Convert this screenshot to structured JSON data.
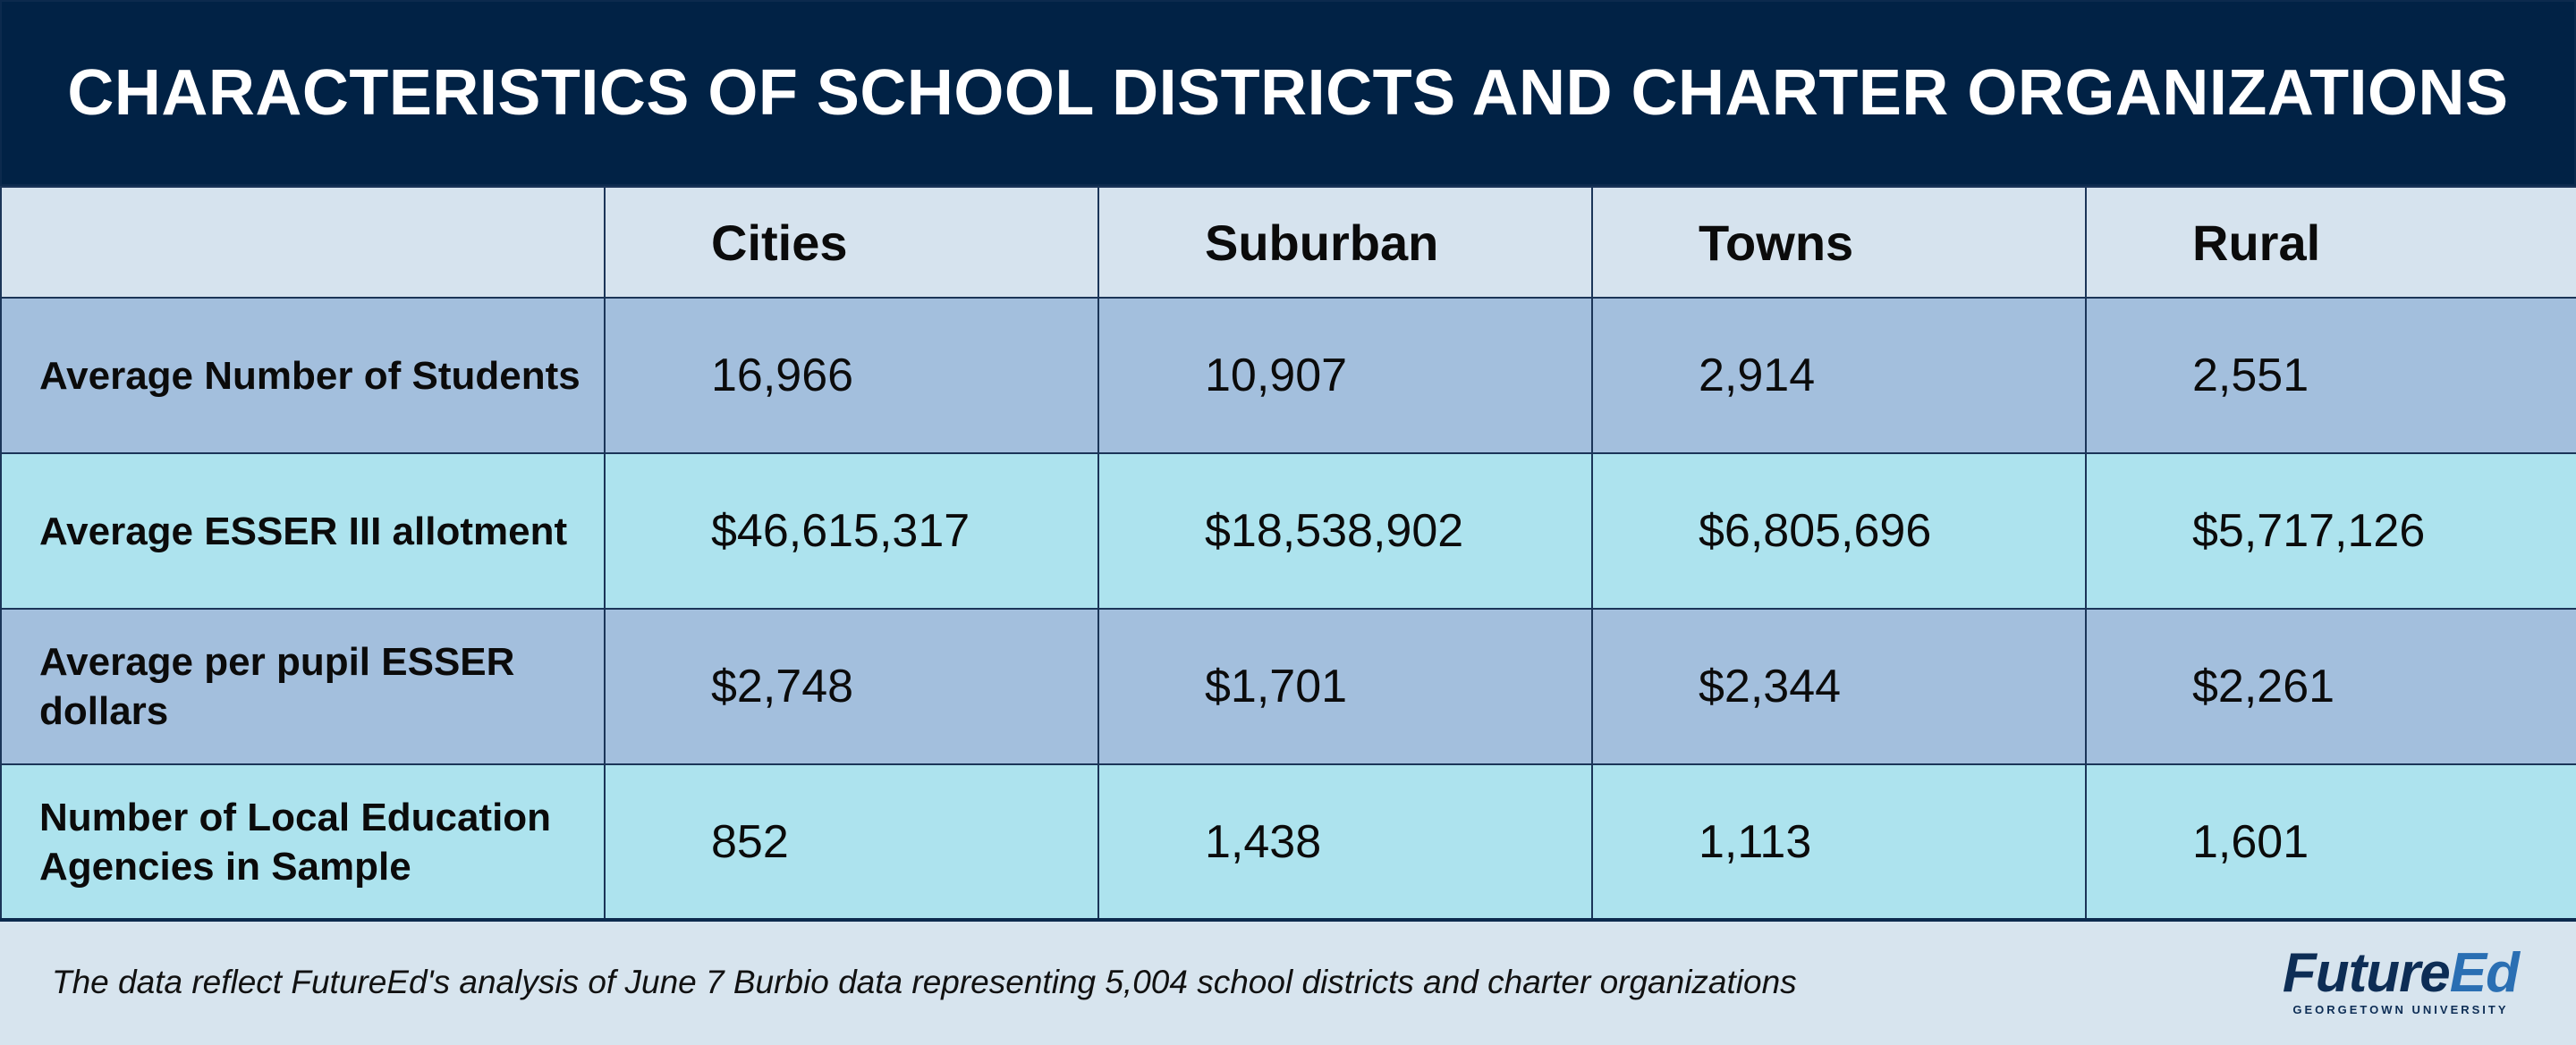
{
  "title": "CHARACTERISTICS OF SCHOOL DISTRICTS AND CHARTER ORGANIZATIONS",
  "table": {
    "columns": [
      "",
      "Cities",
      "Suburban",
      "Towns",
      "Rural"
    ],
    "rows": [
      {
        "label": "Average Number of Students",
        "values": [
          "16,966",
          "10,907",
          "2,914",
          "2,551"
        ]
      },
      {
        "label": "Average ESSER III allotment",
        "values": [
          "$46,615,317",
          "$18,538,902",
          "$6,805,696",
          "$5,717,126"
        ]
      },
      {
        "label": "Average per pupil ESSER dollars",
        "values": [
          "$2,748",
          "$1,701",
          "$2,344",
          "$2,261"
        ]
      },
      {
        "label": "Number of Local Education Agencies in Sample",
        "values": [
          "852",
          "1,438",
          "1,113",
          "1,601"
        ]
      }
    ]
  },
  "footer": {
    "note": "The data reflect FutureEd's analysis of June 7 Burbio data representing 5,004 school districts and charter organizations"
  },
  "logo": {
    "word_part1": "Future",
    "word_part2": "Ed",
    "subtitle": "GEORGETOWN UNIVERSITY"
  },
  "colors": {
    "title_bg": "#012245",
    "header_row_bg": "#d6e3ee",
    "row_blue": "#a3bfdd",
    "row_cyan": "#ade3ee",
    "page_bg": "#d7e4ee"
  }
}
